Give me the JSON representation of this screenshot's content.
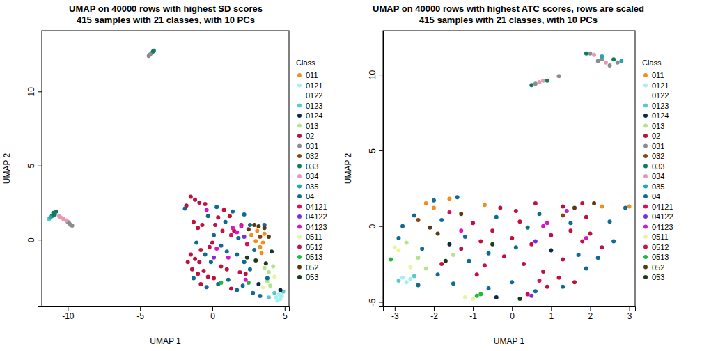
{
  "chart_data": [
    {
      "type": "scatter",
      "title": "UMAP on 40000 rows with highest SD scores",
      "subtitle": "415 samples with 21 classes, with 10 PCs",
      "x_label": "UMAP 1",
      "y_label": "UMAP 2",
      "legend": "right",
      "legend_title": "Class",
      "xlim": [
        -11.8,
        5.3
      ],
      "ylim": [
        -4.5,
        14.1
      ],
      "xticks": [
        -10,
        -5,
        0,
        5
      ],
      "yticks": [
        0,
        5,
        10
      ],
      "series": [
        {
          "name": "011",
          "color": "#f28e1c",
          "x": [
            2.7,
            3.0,
            3.3,
            3.5,
            3.1,
            3.6,
            3.4
          ],
          "values": [
            0.3,
            -0.1,
            -0.5,
            -0.2,
            0.6,
            0.4,
            -0.9
          ]
        },
        {
          "name": "0121",
          "color": "#a6f0f0",
          "x": [
            4.4,
            4.6,
            4.7,
            4.8,
            4.5
          ],
          "values": [
            -3.9,
            -3.7,
            -4.0,
            -3.8,
            -4.1
          ]
        },
        {
          "name": "0122",
          "color": "#ffffff",
          "x": [],
          "values": []
        },
        {
          "name": "0123",
          "color": "#5bc8d0",
          "x": [
            4.3,
            4.9,
            3.9,
            -11.3
          ],
          "values": [
            -3.6,
            -3.5,
            -3.9,
            1.4
          ]
        },
        {
          "name": "0124",
          "color": "#0b2a4a",
          "x": [
            4.7,
            3.2
          ],
          "values": [
            -3.4,
            -3.0
          ]
        },
        {
          "name": "013",
          "color": "#b5e48c",
          "x": [
            3.6,
            3.9,
            4.2,
            3.8,
            4.0
          ],
          "values": [
            -1.9,
            -2.2,
            -1.8,
            -2.8,
            -3.1
          ]
        },
        {
          "name": "02",
          "color": "#c0103f",
          "x": [
            -1.8,
            -1.5,
            -1.2,
            -0.9,
            -0.5,
            -1.3,
            -1.0,
            -0.7,
            -1.5,
            -1.2,
            -0.9,
            -1.4,
            -1.0,
            -0.6,
            -0.3,
            0.1,
            -0.2,
            0.0,
            0.4,
            0.8,
            1.2,
            1.5,
            2.0,
            0.6,
            1.0,
            -1.7,
            -0.8,
            1.3,
            2.3,
            0.2
          ],
          "values": [
            2.3,
            2.9,
            2.7,
            2.5,
            2.4,
            1.2,
            0.8,
            1.0,
            -1.0,
            -1.3,
            -1.5,
            -2.0,
            -2.3,
            -2.1,
            -2.5,
            -2.6,
            -0.5,
            -0.2,
            1.5,
            2.0,
            1.6,
            0.6,
            1.0,
            -1.8,
            -2.0,
            -1.5,
            -3.0,
            -3.3,
            -2.3,
            1.0
          ]
        },
        {
          "name": "031",
          "color": "#8c8c8c",
          "x": [
            -4.4,
            -4.3,
            -4.2,
            -9.9,
            -9.8,
            -9.7,
            -10.0
          ],
          "values": [
            12.4,
            12.5,
            12.6,
            1.1,
            1.0,
            0.95,
            1.2
          ]
        },
        {
          "name": "032",
          "color": "#8b4513",
          "x": [
            3.3
          ],
          "values": [
            0.2
          ]
        },
        {
          "name": "033",
          "color": "#0e7c61",
          "x": [
            -4.1,
            -4.05,
            -11.0,
            -10.8,
            -10.9,
            -11.1
          ],
          "values": [
            12.7,
            12.75,
            1.8,
            1.9,
            1.7,
            1.6
          ]
        },
        {
          "name": "034",
          "color": "#e899b0",
          "x": [
            -10.5,
            -10.3,
            -10.1,
            -10.6
          ],
          "values": [
            1.5,
            1.4,
            1.3,
            1.6
          ]
        },
        {
          "name": "035",
          "color": "#22a7b0",
          "x": [
            -11.2
          ],
          "values": [
            1.5
          ]
        },
        {
          "name": "04",
          "color": "#0f6a96",
          "x": [
            -1.9,
            -0.3,
            0.3,
            0.9,
            1.4,
            2.2,
            2.6,
            0.1,
            0.6,
            1.0,
            1.7,
            2.2,
            2.6,
            -0.5,
            -1.1,
            -0.1,
            0.4,
            1.1,
            1.7,
            2.1,
            2.8,
            3.3,
            3.8,
            2.9,
            -0.4,
            -1.3,
            3.6,
            1.8
          ],
          "values": [
            2.1,
            1.6,
            2.2,
            1.2,
            1.9,
            1.7,
            1.0,
            0.3,
            -0.4,
            -0.8,
            -1.0,
            -1.5,
            -2.0,
            -1.0,
            -0.2,
            -1.5,
            -3.0,
            -2.7,
            -3.4,
            -3.1,
            -3.6,
            -3.8,
            -2.6,
            -0.7,
            -3.2,
            -2.6,
            1.0,
            0.1
          ]
        },
        {
          "name": "04121",
          "color": "#d6105a",
          "x": [
            1.3,
            2.4
          ],
          "values": [
            0.3,
            -0.3
          ]
        },
        {
          "name": "04122",
          "color": "#7b2be2",
          "x": [
            0.1,
            2.2
          ],
          "values": [
            -1.2,
            0.2
          ]
        },
        {
          "name": "04123",
          "color": "#d914c8",
          "x": [
            1.4,
            1.7,
            2.0,
            1.1,
            2.3,
            0.3,
            -0.4
          ],
          "values": [
            0.8,
            0.5,
            0.9,
            -1.2,
            -2.7,
            -0.6,
            2.0
          ]
        },
        {
          "name": "0511",
          "color": "#e8f5a0",
          "x": [
            4.3,
            3.5
          ],
          "values": [
            -2.5,
            -3.2
          ]
        },
        {
          "name": "0512",
          "color": "#c8104e",
          "x": [
            0.7,
            1.9,
            -0.8
          ],
          "values": [
            0.6,
            -2.2,
            -0.7
          ]
        },
        {
          "name": "0513",
          "color": "#22b83a",
          "x": [
            0.6,
            2.5
          ],
          "values": [
            -2.9,
            -2.9
          ]
        },
        {
          "name": "052",
          "color": "#5a3a10",
          "x": [
            2.9,
            3.2,
            3.6,
            3.9,
            2.5
          ],
          "values": [
            1.0,
            0.9,
            0.8,
            0.2,
            0.7
          ]
        },
        {
          "name": "053",
          "color": "#1b3b1b",
          "x": [
            2.4,
            3.0,
            3.7,
            4.1
          ],
          "values": [
            -1.2,
            -1.4,
            -1.6,
            -0.8
          ]
        }
      ]
    },
    {
      "type": "scatter",
      "title": "UMAP on 40000 rows with highest ATC scores, rows are scaled",
      "subtitle": "415 samples with 21 classes, with 10 PCs",
      "x_label": "UMAP 1",
      "y_label": "UMAP 2",
      "legend": "right",
      "legend_title": "Class",
      "xlim": [
        -3.3,
        3.15
      ],
      "ylim": [
        -5.3,
        12.9
      ],
      "xticks": [
        -3,
        -2,
        -1,
        0,
        1,
        2,
        3
      ],
      "yticks": [
        -5,
        0,
        5,
        10
      ],
      "series": [
        {
          "name": "011",
          "color": "#f28e1c",
          "x": [
            -2.2,
            -2.0,
            -1.6,
            3.0,
            2.3,
            -0.7
          ],
          "values": [
            1.5,
            1.2,
            1.8,
            1.3,
            1.3,
            1.4
          ]
        },
        {
          "name": "0121",
          "color": "#a6f0f0",
          "x": [
            -2.8,
            -2.7,
            -2.6
          ],
          "values": [
            -3.4,
            -3.7,
            -3.5
          ]
        },
        {
          "name": "0122",
          "color": "#ffffff",
          "x": [],
          "values": []
        },
        {
          "name": "0123",
          "color": "#5bc8d0",
          "x": [
            -2.5,
            -2.9
          ],
          "values": [
            -3.3,
            -3.6
          ]
        },
        {
          "name": "0124",
          "color": "#0b2a4a",
          "x": [
            -0.4,
            -1.6,
            1.0
          ],
          "values": [
            -4.7,
            -1.2,
            -1.6
          ]
        },
        {
          "name": "013",
          "color": "#b5e48c",
          "x": [
            -2.7,
            -2.4,
            -2.2,
            -1.5
          ],
          "values": [
            -1.1,
            -2.1,
            -2.8,
            -1.9
          ]
        },
        {
          "name": "02",
          "color": "#c0103f",
          "x": [
            -0.3,
            0.1,
            0.6,
            1.3,
            1.8,
            -1.0,
            -0.5,
            0.0,
            0.5,
            1.0,
            1.5,
            2.0,
            -0.2,
            0.3,
            0.8,
            1.2,
            1.6,
            0.9,
            1.3,
            -1.3,
            -0.8,
            2.3,
            0.2,
            -1.8,
            -0.9,
            1.9
          ],
          "values": [
            1.2,
            1.0,
            1.5,
            1.3,
            1.5,
            0.2,
            -0.3,
            -0.8,
            -1.2,
            -0.6,
            -0.3,
            -0.5,
            -2.0,
            -2.5,
            -3.0,
            -3.4,
            -3.7,
            -4.0,
            -2.2,
            -1.5,
            -1.0,
            -1.4,
            0.3,
            -2.5,
            -3.2,
            0.6
          ]
        },
        {
          "name": "031",
          "color": "#8c8c8c",
          "x": [
            2.0,
            2.3,
            2.5,
            2.7,
            2.2,
            1.2,
            0.6
          ],
          "values": [
            11.4,
            11.0,
            10.6,
            10.8,
            10.9,
            9.9,
            9.4
          ]
        },
        {
          "name": "032",
          "color": "#8b4513",
          "x": [
            -2.4,
            1.3
          ],
          "values": [
            0.4,
            0.7
          ]
        },
        {
          "name": "033",
          "color": "#0e7c61",
          "x": [
            1.9,
            2.6,
            0.5,
            0.9
          ],
          "values": [
            11.4,
            11.0,
            9.3,
            9.6
          ]
        },
        {
          "name": "034",
          "color": "#e899b0",
          "x": [
            2.1,
            2.4,
            0.7,
            0.8
          ],
          "values": [
            11.3,
            10.8,
            9.5,
            9.6
          ]
        },
        {
          "name": "035",
          "color": "#22a7b0",
          "x": [
            2.8,
            2.3
          ],
          "values": [
            10.9,
            11.2
          ]
        },
        {
          "name": "04",
          "color": "#0f6a96",
          "x": [
            -2.5,
            -2.8,
            -2.9,
            -2.3,
            -2.0,
            -1.4,
            -1.8,
            -1.2,
            -0.4,
            0.4,
            0.7,
            1.5,
            2.5,
            2.6,
            2.2,
            1.9,
            1.3,
            0.6,
            0.0,
            -0.6,
            -1.5,
            -1.9,
            -2.4,
            -1.1,
            0.1,
            1.7,
            2.9,
            -0.6
          ],
          "values": [
            0.7,
            0.0,
            -0.8,
            -1.5,
            1.7,
            1.9,
            0.4,
            -0.7,
            0.6,
            -0.1,
            0.8,
            0.2,
            0.3,
            -1.0,
            -2.1,
            -2.8,
            -4.0,
            -4.3,
            -3.7,
            -4.1,
            -3.8,
            -3.2,
            -3.9,
            -2.3,
            -1.4,
            -1.9,
            1.2,
            -1.8
          ]
        },
        {
          "name": "04121",
          "color": "#d6105a",
          "x": [
            0.7,
            -1.6
          ],
          "values": [
            -3.6,
            0.9
          ]
        },
        {
          "name": "04122",
          "color": "#7b2be2",
          "x": [
            0.5,
            0.6
          ],
          "values": [
            -4.6,
            -1.0
          ]
        },
        {
          "name": "04123",
          "color": "#d914c8",
          "x": [
            0.8,
            0.9,
            1.9,
            -1.3,
            1.4
          ],
          "values": [
            0.0,
            0.2,
            -0.8,
            -0.3,
            1.0
          ]
        },
        {
          "name": "0511",
          "color": "#e8f5a0",
          "x": [
            -3.0,
            -2.9,
            -2.6,
            -1.2,
            -1.0
          ],
          "values": [
            -1.4,
            -1.6,
            -2.7,
            -4.7,
            -4.8
          ]
        },
        {
          "name": "0512",
          "color": "#c8104e",
          "x": [
            0.4,
            -0.7,
            1.8
          ],
          "values": [
            -4.5,
            -2.6,
            -1.0
          ]
        },
        {
          "name": "0513",
          "color": "#22b83a",
          "x": [
            -3.1,
            -0.9,
            -0.8
          ],
          "values": [
            -2.2,
            -4.6,
            -4.5
          ]
        },
        {
          "name": "052",
          "color": "#5a3a10",
          "x": [
            -1.9,
            -2.1,
            2.1,
            1.6,
            -1.3
          ],
          "values": [
            -0.5,
            -0.1,
            1.5,
            1.2,
            0.8
          ]
        },
        {
          "name": "053",
          "color": "#1b3b1b",
          "x": [
            -1.7,
            0.2,
            -0.5
          ],
          "values": [
            -2.3,
            -4.8,
            -1.2
          ]
        }
      ]
    }
  ]
}
